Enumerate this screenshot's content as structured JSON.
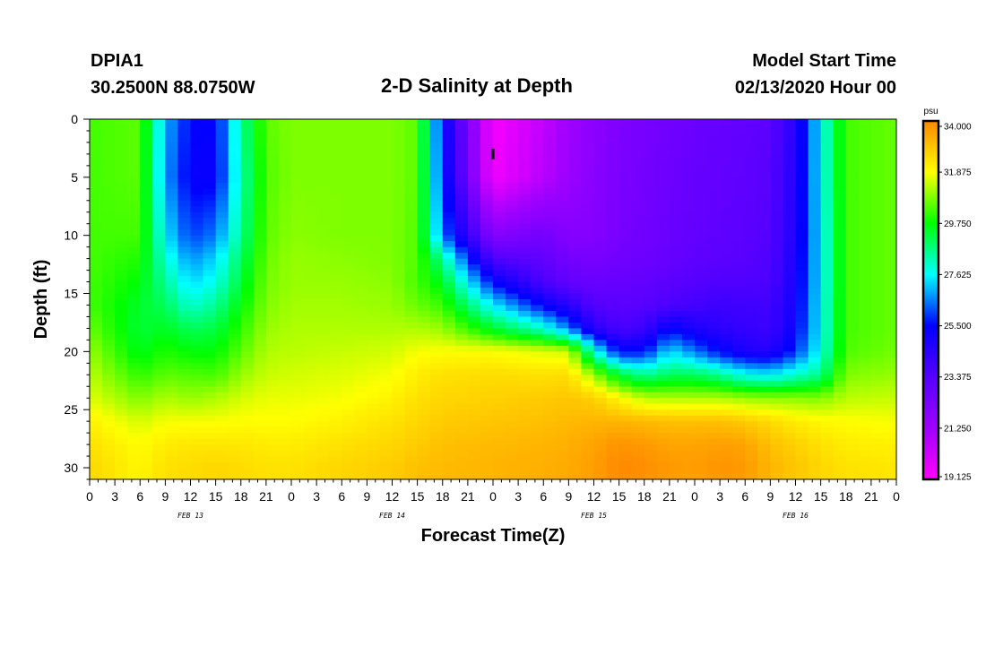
{
  "header": {
    "station": "DPIA1",
    "coords": "30.2500N 88.0750W",
    "title": "2-D Salinity at Depth",
    "model_start_label": "Model Start Time",
    "model_start_value": "02/13/2020 Hour 00"
  },
  "chart_data": {
    "type": "heatmap",
    "title": "2-D Salinity at Depth",
    "xlabel": "Forecast Time(Z)",
    "ylabel": "Depth (ft)",
    "x_tick_labels": [
      "0",
      "3",
      "6",
      "9",
      "12",
      "15",
      "18",
      "21",
      "0",
      "3",
      "6",
      "9",
      "12",
      "15",
      "18",
      "21",
      "0",
      "3",
      "6",
      "9",
      "12",
      "15",
      "18",
      "21",
      "0",
      "3",
      "6",
      "9",
      "12",
      "15",
      "18",
      "21",
      "0"
    ],
    "x_range_hours": [
      0,
      96
    ],
    "day_labels": [
      {
        "label": "FEB 13",
        "hour": 12
      },
      {
        "label": "FEB 14",
        "hour": 36
      },
      {
        "label": "FEB 15",
        "hour": 60
      },
      {
        "label": "FEB 16",
        "hour": 84
      }
    ],
    "y_ticks": [
      0,
      5,
      10,
      15,
      20,
      25,
      30
    ],
    "ylim": [
      0,
      31
    ],
    "y_inverted": true,
    "colorbar": {
      "unit": "psu",
      "ticks": [
        "34.000",
        "31.875",
        "29.750",
        "27.625",
        "25.500",
        "23.375",
        "21.250",
        "19.125"
      ],
      "min": 19.125,
      "max": 34.0,
      "colors": [
        "#ff00ff",
        "#a000ff",
        "#5500ff",
        "#0000ff",
        "#00ffff",
        "#00ff00",
        "#ffff00",
        "#ff8800"
      ]
    },
    "marker": {
      "hour": 48,
      "depth": 3
    },
    "x": [
      0,
      6,
      9,
      12,
      15,
      18,
      21,
      24,
      30,
      36,
      39,
      42,
      48,
      54,
      57,
      60,
      63,
      66,
      69,
      72,
      75,
      78,
      81,
      84,
      87,
      90,
      96
    ],
    "depths": [
      0,
      5,
      10,
      12,
      14,
      16,
      18,
      20,
      22,
      24,
      26,
      28,
      30,
      31
    ],
    "values": [
      [
        30.3,
        30.3,
        30.3,
        30.3,
        30.3,
        30.3,
        30.6,
        31.0,
        31.3,
        31.6,
        32.1,
        32.4,
        32.6,
        32.6
      ],
      [
        30.5,
        30.5,
        30.3,
        30.0,
        29.7,
        29.4,
        29.3,
        29.5,
        30.1,
        30.8,
        31.5,
        31.9,
        32.0,
        32.0
      ],
      [
        27.0,
        26.8,
        27.5,
        28.0,
        28.5,
        29.0,
        29.5,
        30.0,
        30.5,
        31.2,
        31.8,
        32.2,
        32.4,
        32.4
      ],
      [
        25.5,
        25.3,
        26.0,
        26.7,
        27.3,
        28.0,
        29.0,
        29.7,
        30.4,
        31.0,
        31.8,
        32.3,
        32.5,
        32.5
      ],
      [
        25.4,
        25.3,
        26.5,
        27.3,
        27.8,
        28.5,
        29.2,
        29.7,
        30.3,
        31.2,
        31.8,
        32.3,
        32.6,
        32.6
      ],
      [
        28.5,
        28.3,
        28.6,
        29.0,
        29.3,
        29.7,
        30.1,
        30.5,
        31.0,
        31.5,
        31.9,
        32.3,
        32.5,
        32.5
      ],
      [
        30.5,
        30.4,
        30.5,
        30.6,
        30.7,
        30.8,
        31.0,
        31.2,
        31.4,
        31.7,
        31.9,
        32.2,
        32.4,
        32.4
      ],
      [
        30.8,
        30.8,
        30.9,
        31.0,
        31.0,
        31.1,
        31.2,
        31.3,
        31.5,
        31.7,
        31.9,
        32.2,
        32.4,
        32.4
      ],
      [
        30.8,
        30.8,
        30.8,
        30.9,
        31.0,
        31.1,
        31.2,
        31.4,
        31.6,
        31.8,
        32.1,
        32.4,
        32.6,
        32.6
      ],
      [
        30.8,
        30.8,
        30.8,
        30.8,
        30.9,
        31.0,
        31.2,
        31.5,
        31.8,
        32.1,
        32.4,
        32.6,
        32.8,
        32.8
      ],
      [
        30.5,
        30.5,
        30.4,
        30.4,
        30.3,
        30.6,
        31.2,
        31.8,
        32.2,
        32.4,
        32.6,
        32.8,
        33.0,
        33.0
      ],
      [
        25.5,
        25.8,
        26.5,
        28.5,
        29.5,
        30.2,
        31.0,
        31.9,
        32.4,
        32.6,
        32.8,
        33.0,
        33.1,
        33.1
      ],
      [
        19.3,
        19.4,
        22.0,
        23.5,
        25.5,
        27.5,
        29.4,
        31.9,
        32.5,
        32.7,
        32.9,
        33.1,
        33.2,
        33.2
      ],
      [
        20.5,
        20.7,
        22.5,
        23.0,
        23.6,
        25.4,
        28.0,
        31.6,
        32.4,
        32.8,
        33.0,
        33.2,
        33.3,
        33.3
      ],
      [
        21.3,
        21.4,
        22.0,
        22.5,
        23.0,
        24.5,
        26.5,
        31.5,
        32.5,
        32.9,
        33.1,
        33.3,
        33.4,
        33.4
      ],
      [
        21.8,
        21.9,
        22.0,
        22.4,
        22.8,
        23.4,
        24.5,
        28.0,
        31.0,
        32.7,
        33.2,
        33.5,
        33.6,
        33.6
      ],
      [
        22.2,
        22.3,
        22.4,
        22.6,
        22.9,
        23.2,
        23.6,
        25.5,
        29.3,
        32.0,
        33.2,
        33.8,
        34.0,
        33.9
      ],
      [
        22.4,
        22.5,
        22.6,
        22.7,
        23.0,
        23.3,
        24.0,
        25.6,
        28.5,
        31.3,
        33.1,
        33.7,
        33.9,
        33.8
      ],
      [
        22.6,
        22.7,
        22.8,
        22.9,
        23.2,
        23.6,
        25.5,
        27.4,
        29.0,
        31.2,
        33.0,
        33.5,
        33.7,
        33.6
      ],
      [
        22.8,
        22.9,
        23.0,
        23.1,
        23.4,
        23.8,
        24.8,
        26.5,
        29.0,
        31.2,
        33.0,
        33.5,
        33.6,
        33.5
      ],
      [
        22.9,
        23.0,
        23.1,
        23.2,
        23.5,
        24.0,
        24.4,
        25.5,
        28.5,
        31.2,
        33.0,
        33.6,
        33.8,
        33.7
      ],
      [
        23.0,
        23.1,
        23.2,
        23.3,
        23.5,
        23.9,
        24.2,
        24.8,
        27.7,
        31.0,
        32.8,
        33.5,
        33.7,
        33.6
      ],
      [
        23.2,
        23.3,
        23.4,
        23.5,
        23.6,
        23.9,
        24.0,
        24.6,
        27.5,
        30.9,
        32.5,
        33.0,
        33.2,
        33.1
      ],
      [
        24.6,
        24.7,
        24.8,
        24.9,
        25.0,
        25.1,
        25.3,
        25.9,
        28.0,
        30.9,
        32.2,
        32.7,
        32.9,
        32.8
      ],
      [
        27.6,
        27.6,
        27.5,
        27.5,
        27.5,
        27.6,
        27.6,
        27.8,
        28.6,
        30.8,
        32.0,
        32.4,
        32.6,
        32.6
      ],
      [
        30.3,
        30.3,
        30.3,
        30.3,
        30.3,
        30.3,
        30.3,
        30.4,
        30.8,
        31.3,
        31.9,
        32.2,
        32.4,
        32.4
      ],
      [
        30.6,
        30.6,
        30.6,
        30.6,
        30.6,
        30.6,
        30.6,
        30.7,
        31.0,
        31.4,
        31.8,
        32.1,
        32.3,
        32.3
      ]
    ]
  }
}
